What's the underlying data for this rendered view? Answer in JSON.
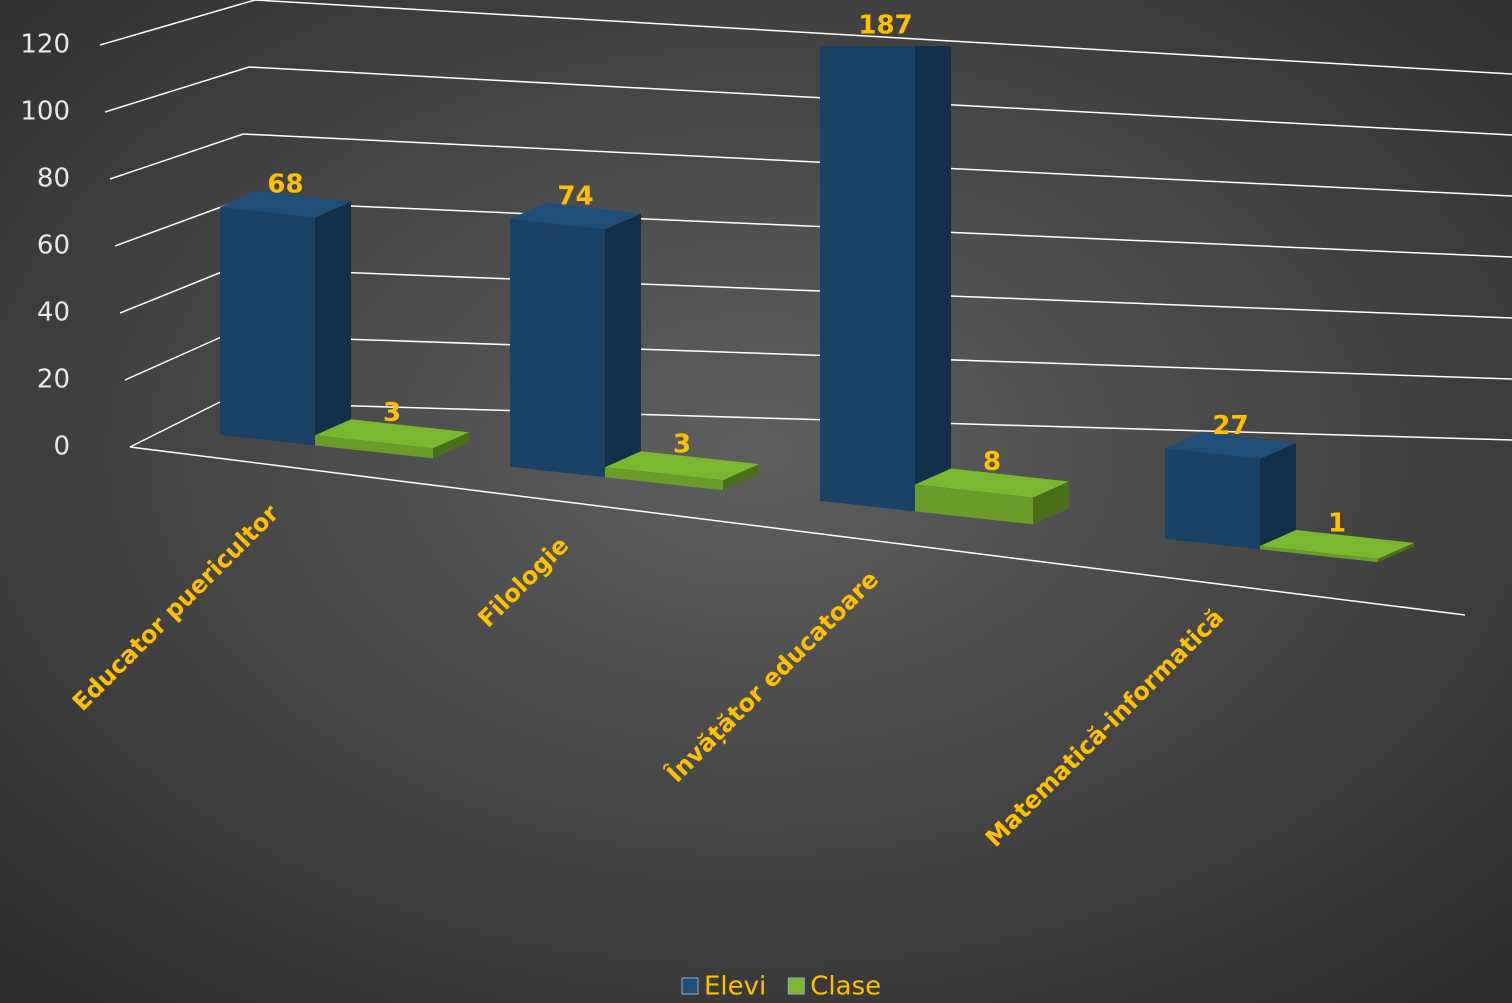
{
  "chart_data": {
    "type": "bar3d",
    "categories": [
      "Educator puericultor",
      "Filologie",
      "Învățător educatoare",
      "Matematică-informatică"
    ],
    "series": [
      {
        "name": "Elevi",
        "color": "#1f4e79",
        "values": [
          68,
          74,
          187,
          27
        ]
      },
      {
        "name": "Clase",
        "color": "#7cb82f",
        "values": [
          3,
          3,
          8,
          1
        ]
      }
    ],
    "ylim": [
      0,
      120
    ],
    "yticks": [
      0,
      20,
      40,
      60,
      80,
      100,
      120
    ],
    "grid": true,
    "legend": "bottom"
  }
}
